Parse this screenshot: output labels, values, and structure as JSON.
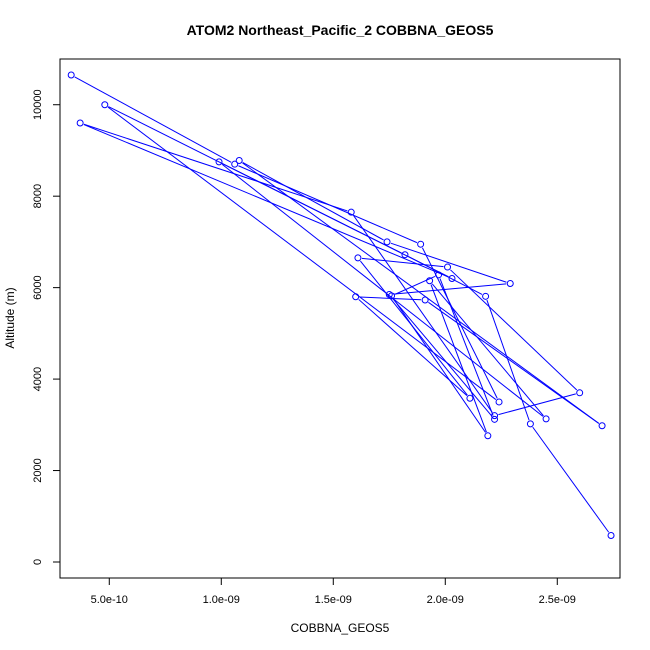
{
  "chart_data": {
    "type": "scatter",
    "title": "ATOM2 Northeast_Pacific_2 COBBNA_GEOS5",
    "xlabel": "COBBNA_GEOS5",
    "ylabel": "Altitude (m)",
    "xlim": [
      2.8e-10,
      2.78e-09
    ],
    "ylim": [
      -350,
      11000
    ],
    "x_ticks": [
      5e-10,
      1e-09,
      1.5e-09,
      2e-09,
      2.5e-09
    ],
    "x_tick_labels": [
      "5.0e-10",
      "1.0e-09",
      "1.5e-09",
      "2.0e-09",
      "2.5e-09"
    ],
    "y_ticks": [
      0,
      2000,
      4000,
      6000,
      8000,
      10000
    ],
    "y_tick_labels": [
      "0",
      "2000",
      "4000",
      "6000",
      "8000",
      "10000"
    ],
    "grid": false,
    "legend": "none",
    "colors": {
      "series": "#0000ff",
      "axes": "#000000"
    },
    "series": [
      {
        "marker": "open-circle",
        "x": [
          3.3e-10,
          1.06e-09,
          1.89e-09,
          2.24e-09,
          4.8e-10,
          2.03e-09,
          3.7e-10,
          1.58e-09,
          2.22e-09,
          2.6e-09,
          2.01e-09,
          1.61e-09,
          2.11e-09,
          1.6e-09,
          1.91e-09,
          2.7e-09,
          1.08e-09,
          1.74e-09,
          2.29e-09,
          1.75e-09,
          2.22e-09,
          1.97e-09,
          1.76e-09,
          2.19e-09,
          1.93e-09,
          2.45e-09,
          9.9e-10,
          1.82e-09,
          2.18e-09,
          2.38e-09,
          2.74e-09
        ],
        "y": [
          10650,
          8700,
          6950,
          3500,
          10000,
          6200,
          9600,
          7650,
          3200,
          3700,
          6450,
          6650,
          3580,
          5800,
          5730,
          2980,
          8780,
          7000,
          6090,
          5850,
          3120,
          6280,
          5820,
          2760,
          6150,
          3130,
          8750,
          6720,
          5810,
          3020,
          580
        ]
      }
    ]
  }
}
